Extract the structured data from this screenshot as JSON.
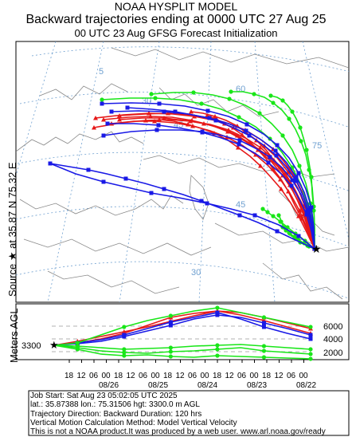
{
  "header": {
    "line1": "NOAA HYSPLIT MODEL",
    "line2": "Backward trajectories ending at 0000 UTC 27 Aug 25",
    "line3": "00 UTC 23 Aug    GFSG  Forecast Initialization"
  },
  "side_label": {
    "source": "Source",
    "star": "★",
    "at": "at",
    "lat": "35.87 N",
    "lon": "75.32 E"
  },
  "map": {
    "lat_labels": [
      "60",
      "45",
      "30"
    ],
    "lon_labels": [
      "75",
      "30",
      "45",
      "5"
    ],
    "colors": {
      "green": "#19e619",
      "red": "#e61919",
      "blue": "#1919e6",
      "grid": "#6fa0d0",
      "land": "#8a8a8a"
    }
  },
  "height_panel": {
    "ylabel": "Meters AGL",
    "start_height": "3300",
    "right_ticks": [
      "6000",
      "4000",
      "2000"
    ],
    "hour_ticks": [
      "18",
      "12",
      "06",
      "00",
      "18",
      "12",
      "06",
      "00",
      "18",
      "12",
      "06",
      "00",
      "18",
      "12",
      "06",
      "00",
      "18",
      "12",
      "06",
      "00"
    ],
    "date_ticks": [
      "08/26",
      "08/25",
      "08/24",
      "08/23",
      "08/22"
    ]
  },
  "info": {
    "line1": "Job Start: Sat Aug 23 05:02:05 UTC 2025",
    "line2": "lat.: 35.87388   lon.: 75.31506   hgt: 3300.0 m AGL",
    "line3": "Trajectory Direction: Backward        Duration: 120 hrs",
    "line4": "Vertical Motion Calculation Method: Model Vertical Velocity",
    "line5": "This is not a NOAA product.It was produced by a web user. www.arl.noaa.gov/ready"
  }
}
